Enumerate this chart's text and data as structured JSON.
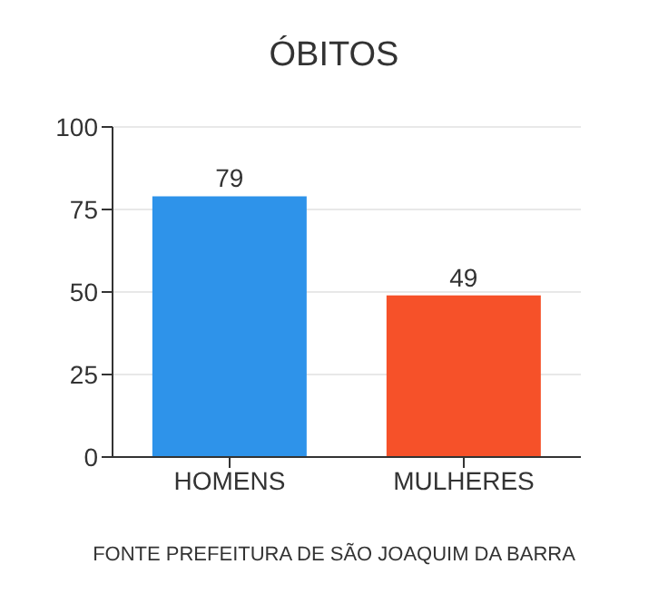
{
  "chart_data": {
    "type": "bar",
    "title": "ÓBITOS",
    "categories": [
      "HOMENS",
      "MULHERES"
    ],
    "values": [
      79,
      49
    ],
    "colors": [
      "#2e93ea",
      "#f65129"
    ],
    "ylim": [
      0,
      100
    ],
    "yticks": [
      0,
      25,
      50,
      75,
      100
    ],
    "grid": "y",
    "data_labels": true,
    "annotations": [
      "FONTE PREFEITURA DE SÃO JOAQUIM DA BARRA"
    ]
  }
}
